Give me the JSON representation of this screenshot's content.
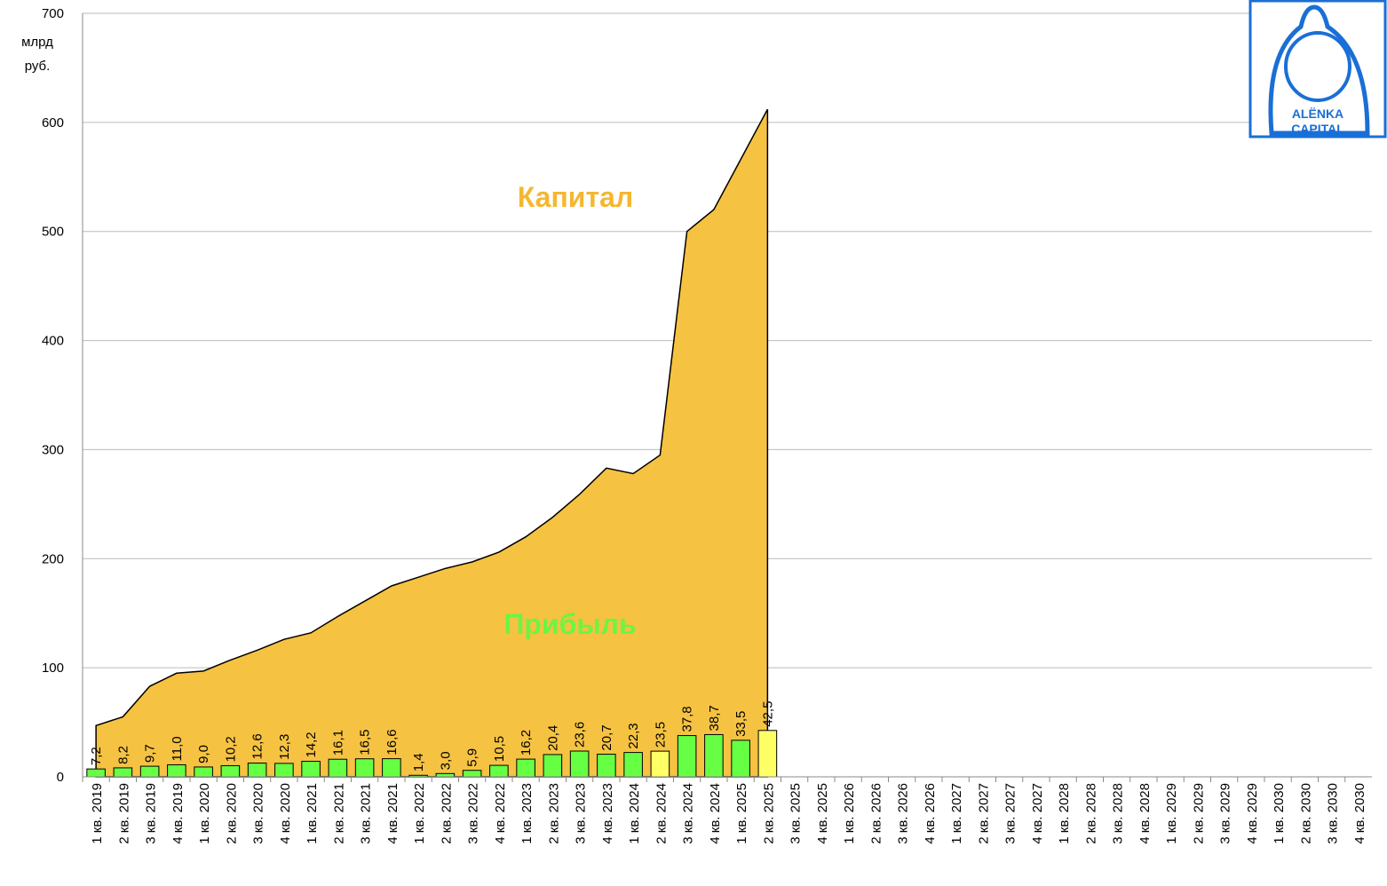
{
  "chart_data": {
    "type": "combo",
    "y_axis_label_lines": [
      "млрд",
      "руб."
    ],
    "categories": [
      "1 кв. 2019",
      "2 кв. 2019",
      "3 кв. 2019",
      "4 кв. 2019",
      "1 кв. 2020",
      "2 кв. 2020",
      "3 кв. 2020",
      "4 кв. 2020",
      "1 кв. 2021",
      "2 кв. 2021",
      "3 кв. 2021",
      "4 кв. 2021",
      "1 кв. 2022",
      "2 кв. 2022",
      "3 кв. 2022",
      "4 кв. 2022",
      "1 кв. 2023",
      "2 кв. 2023",
      "3 кв. 2023",
      "4 кв. 2023",
      "1 кв. 2024",
      "2 кв. 2024",
      "3 кв. 2024",
      "4 кв. 2024",
      "1 кв. 2025",
      "2 кв. 2025",
      "3 кв. 2025",
      "4 кв. 2025",
      "1 кв. 2026",
      "2 кв. 2026",
      "3 кв. 2026",
      "4 кв. 2026",
      "1 кв. 2027",
      "2 кв. 2027",
      "3 кв. 2027",
      "4 кв. 2027",
      "1 кв. 2028",
      "2 кв. 2028",
      "3 кв. 2028",
      "4 кв. 2028",
      "1 кв. 2029",
      "2 кв. 2029",
      "3 кв. 2029",
      "4 кв. 2029",
      "1 кв. 2030",
      "2 кв. 2030",
      "3 кв. 2030",
      "4 кв. 2030"
    ],
    "series": [
      {
        "name": "Капитал",
        "type": "area",
        "color": "#f5c242",
        "label_color": "#f5b731",
        "values": [
          47,
          55,
          83,
          95,
          97,
          107,
          116,
          126,
          132,
          147,
          161,
          175,
          183,
          191,
          197,
          206,
          220,
          238,
          259,
          283,
          278,
          295,
          500,
          520,
          566,
          612,
          null,
          null,
          null,
          null,
          null,
          null,
          null,
          null,
          null,
          null,
          null,
          null,
          null,
          null,
          null,
          null,
          null,
          null,
          null,
          null,
          null,
          null
        ]
      },
      {
        "name": "Прибыль",
        "type": "bar",
        "label_color": "#6cf542",
        "colors": [
          "#66ff44",
          "#66ff44",
          "#66ff44",
          "#66ff44",
          "#66ff44",
          "#66ff44",
          "#66ff44",
          "#66ff44",
          "#66ff44",
          "#66ff44",
          "#66ff44",
          "#66ff44",
          "#66ff44",
          "#66ff44",
          "#66ff44",
          "#66ff44",
          "#66ff44",
          "#66ff44",
          "#66ff44",
          "#66ff44",
          "#66ff44",
          "#ffff66",
          "#66ff44",
          "#66ff44",
          "#66ff44",
          "#ffff66"
        ],
        "values": [
          7.2,
          8.2,
          9.7,
          11.0,
          9.0,
          10.2,
          12.6,
          12.3,
          14.2,
          16.1,
          16.5,
          16.6,
          1.4,
          3.0,
          5.9,
          10.5,
          16.2,
          20.4,
          23.6,
          20.7,
          22.3,
          23.5,
          37.8,
          38.7,
          33.5,
          42.5,
          null,
          null,
          null,
          null,
          null,
          null,
          null,
          null,
          null,
          null,
          null,
          null,
          null,
          null,
          null,
          null,
          null,
          null,
          null,
          null,
          null,
          null
        ],
        "value_labels": [
          "7,2",
          "8,2",
          "9,7",
          "11,0",
          "9,0",
          "10,2",
          "12,6",
          "12,3",
          "14,2",
          "16,1",
          "16,5",
          "16,6",
          "1,4",
          "3,0",
          "5,9",
          "10,5",
          "16,2",
          "20,4",
          "23,6",
          "20,7",
          "22,3",
          "23,5",
          "37,8",
          "38,7",
          "33,5",
          "42,5",
          null,
          null,
          null,
          null,
          null,
          null,
          null,
          null,
          null,
          null,
          null,
          null,
          null,
          null,
          null,
          null,
          null,
          null,
          null,
          null,
          null,
          null
        ]
      }
    ],
    "ylim": [
      0,
      700
    ],
    "yticks": [
      0,
      100,
      200,
      300,
      400,
      500,
      600,
      700
    ],
    "grid": true,
    "logo": [
      "ALЁNKA",
      "CAPITAL"
    ]
  }
}
